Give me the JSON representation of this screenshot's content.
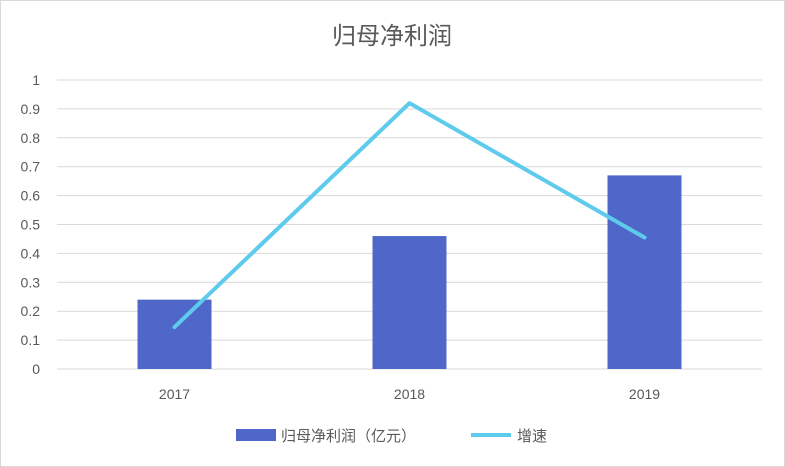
{
  "chart_data": {
    "type": "bar+line",
    "title": "归母净利润",
    "categories": [
      "2017",
      "2018",
      "2019"
    ],
    "series": [
      {
        "name": "归母净利润（亿元）",
        "type": "bar",
        "values": [
          0.24,
          0.46,
          0.67
        ],
        "color": "#4e67c8"
      },
      {
        "name": "增速",
        "type": "line",
        "values": [
          0.145,
          0.92,
          0.455
        ],
        "color": "#5ecbed"
      }
    ],
    "ylim": [
      0,
      1
    ],
    "yticks": [
      "0",
      "0.1",
      "0.2",
      "0.3",
      "0.4",
      "0.5",
      "0.6",
      "0.7",
      "0.8",
      "0.9",
      "1"
    ],
    "grid": true,
    "legend": "bottom",
    "colors": {
      "grid": "#d9d9d9",
      "text": "#595959"
    }
  }
}
